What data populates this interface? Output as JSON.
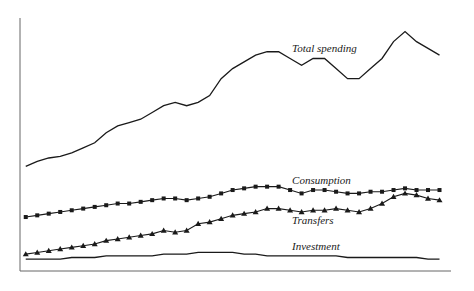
{
  "chart_data": {
    "type": "line",
    "x": [
      1960,
      1961,
      1962,
      1963,
      1964,
      1965,
      1966,
      1967,
      1968,
      1969,
      1970,
      1971,
      1972,
      1973,
      1974,
      1975,
      1976,
      1977,
      1978,
      1979,
      1980,
      1981,
      1982,
      1983,
      1984,
      1985,
      1986,
      1987,
      1988,
      1989,
      1990,
      1991,
      1992,
      1993,
      1994,
      1995,
      1996
    ],
    "series": [
      {
        "name": "Total spending",
        "color": "#1a1a1a",
        "marker": "none",
        "values": [
          31,
          32.5,
          33.5,
          34,
          35,
          36.5,
          38,
          41,
          43,
          44,
          45,
          47,
          49,
          50,
          49,
          50,
          52,
          57,
          60,
          62,
          64,
          65,
          65,
          63,
          61,
          63,
          63,
          60,
          57,
          57,
          60,
          63,
          68,
          71,
          68,
          66,
          64
        ]
      },
      {
        "name": "Consumption",
        "color": "#1a1a1a",
        "marker": "square",
        "values": [
          16,
          16.5,
          17,
          17.5,
          18,
          18.5,
          19,
          19.5,
          20,
          20,
          20.5,
          21,
          21.5,
          21.5,
          21,
          21.5,
          22,
          23,
          24,
          24.5,
          25,
          25,
          25,
          24,
          23,
          24,
          24,
          23.5,
          23,
          23,
          23.5,
          23.5,
          24,
          24.5,
          24,
          24,
          24
        ]
      },
      {
        "name": "Transfers",
        "color": "#1a1a1a",
        "marker": "triangle",
        "values": [
          5,
          5.5,
          6,
          6.5,
          7,
          7.5,
          8,
          9,
          9.5,
          10,
          10.5,
          11,
          12,
          11.5,
          12,
          14,
          14.5,
          15.5,
          16.5,
          17,
          17.5,
          18.5,
          18.5,
          18,
          17.5,
          18,
          18,
          18.5,
          18,
          17.5,
          18.5,
          20,
          22,
          23,
          22.5,
          21.5,
          21
        ]
      },
      {
        "name": "Investment",
        "color": "#1a1a1a",
        "marker": "none",
        "values": [
          3.5,
          3.5,
          3.5,
          3.5,
          4,
          4,
          4,
          4.5,
          4.5,
          4.5,
          4.5,
          4.5,
          5,
          5,
          5,
          5.5,
          5.5,
          5.5,
          5.5,
          5,
          5,
          4.5,
          4.5,
          4.5,
          4.5,
          4.5,
          4.5,
          4.5,
          4,
          4,
          4,
          4,
          4,
          4,
          4,
          3.5,
          3.5
        ]
      }
    ],
    "xlim": [
      1959.5,
      1997
    ],
    "xticks": [
      1960,
      1961,
      1962,
      1963,
      1964,
      1965,
      1966,
      1967,
      1968,
      1969,
      1970,
      1971,
      1972,
      1973,
      1974,
      1975,
      1976,
      1977,
      1978,
      1979,
      1980,
      1981,
      1982,
      1983,
      1984,
      1985,
      1986,
      1987,
      1988,
      1989,
      1990,
      1991,
      1992,
      1993,
      1994,
      1995,
      1996
    ],
    "ylim": [
      0,
      75
    ],
    "yticks": [
      10,
      20,
      30,
      40,
      50,
      60,
      70
    ],
    "tick_labels": false,
    "grid": false
  }
}
